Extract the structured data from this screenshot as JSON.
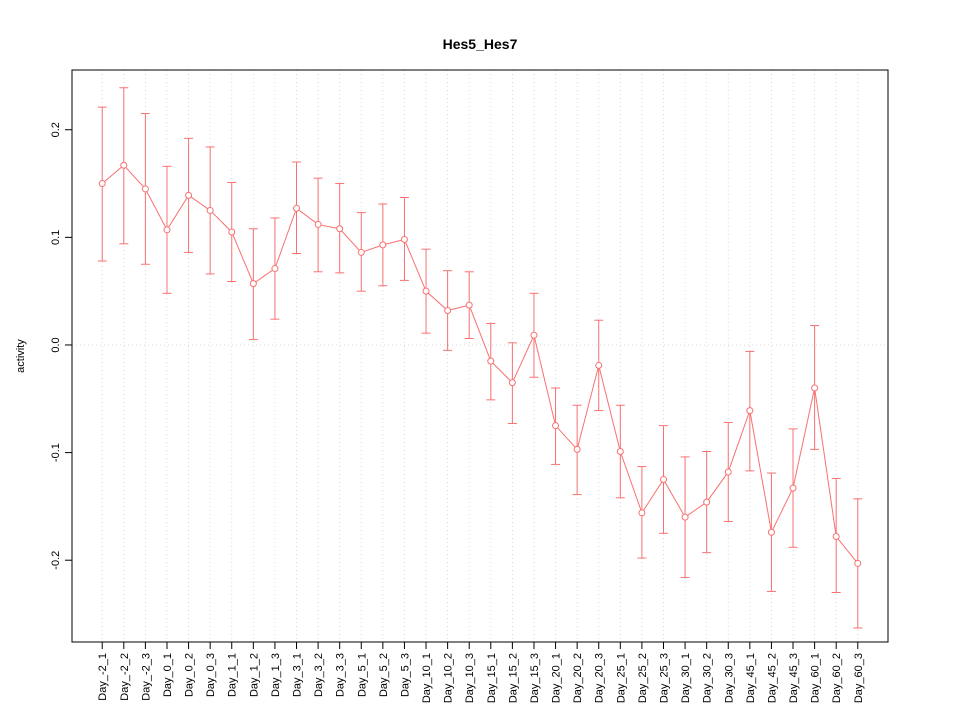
{
  "chart_data": {
    "type": "line",
    "title": "Hes5_Hes7",
    "xlabel": "",
    "ylabel": "activity",
    "ylim": [
      -0.276,
      0.2555
    ],
    "yticks": [
      -0.2,
      -0.1,
      0.0,
      0.1,
      0.2
    ],
    "ytick_labels": [
      "-0.2",
      "-0.1",
      "0.0",
      "0.1",
      "0.2"
    ],
    "legend_position": "none",
    "marker": "open-circle",
    "grid": {
      "vertical_dotted_per_category": true,
      "horizontal_dotted_at_zero": true
    },
    "colors": {
      "series": "#f87171",
      "grid": "#d8d8d8",
      "axis": "#000000",
      "background": "#ffffff"
    },
    "categories": [
      "Day_-2_1",
      "Day_-2_2",
      "Day_-2_3",
      "Day_0_1",
      "Day_0_2",
      "Day_0_3",
      "Day_1_1",
      "Day_1_2",
      "Day_1_3",
      "Day_3_1",
      "Day_3_2",
      "Day_3_3",
      "Day_5_1",
      "Day_5_2",
      "Day_5_3",
      "Day_10_1",
      "Day_10_2",
      "Day_10_3",
      "Day_15_1",
      "Day_15_2",
      "Day_15_3",
      "Day_20_1",
      "Day_20_2",
      "Day_20_3",
      "Day_25_1",
      "Day_25_2",
      "Day_25_3",
      "Day_30_1",
      "Day_30_2",
      "Day_30_3",
      "Day_45_1",
      "Day_45_2",
      "Day_45_3",
      "Day_60_1",
      "Day_60_2",
      "Day_60_3"
    ],
    "values": [
      0.15,
      0.167,
      0.145,
      0.107,
      0.139,
      0.125,
      0.105,
      0.057,
      0.071,
      0.127,
      0.112,
      0.108,
      0.086,
      0.093,
      0.098,
      0.05,
      0.032,
      0.037,
      -0.015,
      -0.035,
      0.009,
      -0.075,
      -0.097,
      -0.019,
      -0.099,
      -0.156,
      -0.125,
      -0.16,
      -0.146,
      -0.118,
      -0.061,
      -0.174,
      -0.133,
      -0.04,
      -0.178,
      -0.203
    ],
    "err_low": [
      0.078,
      0.094,
      0.075,
      0.048,
      0.086,
      0.066,
      0.059,
      0.005,
      0.024,
      0.085,
      0.068,
      0.067,
      0.05,
      0.055,
      0.06,
      0.011,
      -0.005,
      0.006,
      -0.051,
      -0.073,
      -0.03,
      -0.111,
      -0.139,
      -0.061,
      -0.142,
      -0.198,
      -0.175,
      -0.216,
      -0.193,
      -0.164,
      -0.117,
      -0.229,
      -0.188,
      -0.097,
      -0.23,
      -0.263
    ],
    "err_high": [
      0.221,
      0.239,
      0.215,
      0.166,
      0.192,
      0.184,
      0.151,
      0.108,
      0.118,
      0.17,
      0.155,
      0.15,
      0.123,
      0.131,
      0.137,
      0.089,
      0.069,
      0.068,
      0.02,
      0.002,
      0.048,
      -0.04,
      -0.056,
      0.023,
      -0.056,
      -0.113,
      -0.075,
      -0.104,
      -0.099,
      -0.072,
      -0.006,
      -0.119,
      -0.078,
      0.018,
      -0.124,
      -0.143
    ]
  }
}
